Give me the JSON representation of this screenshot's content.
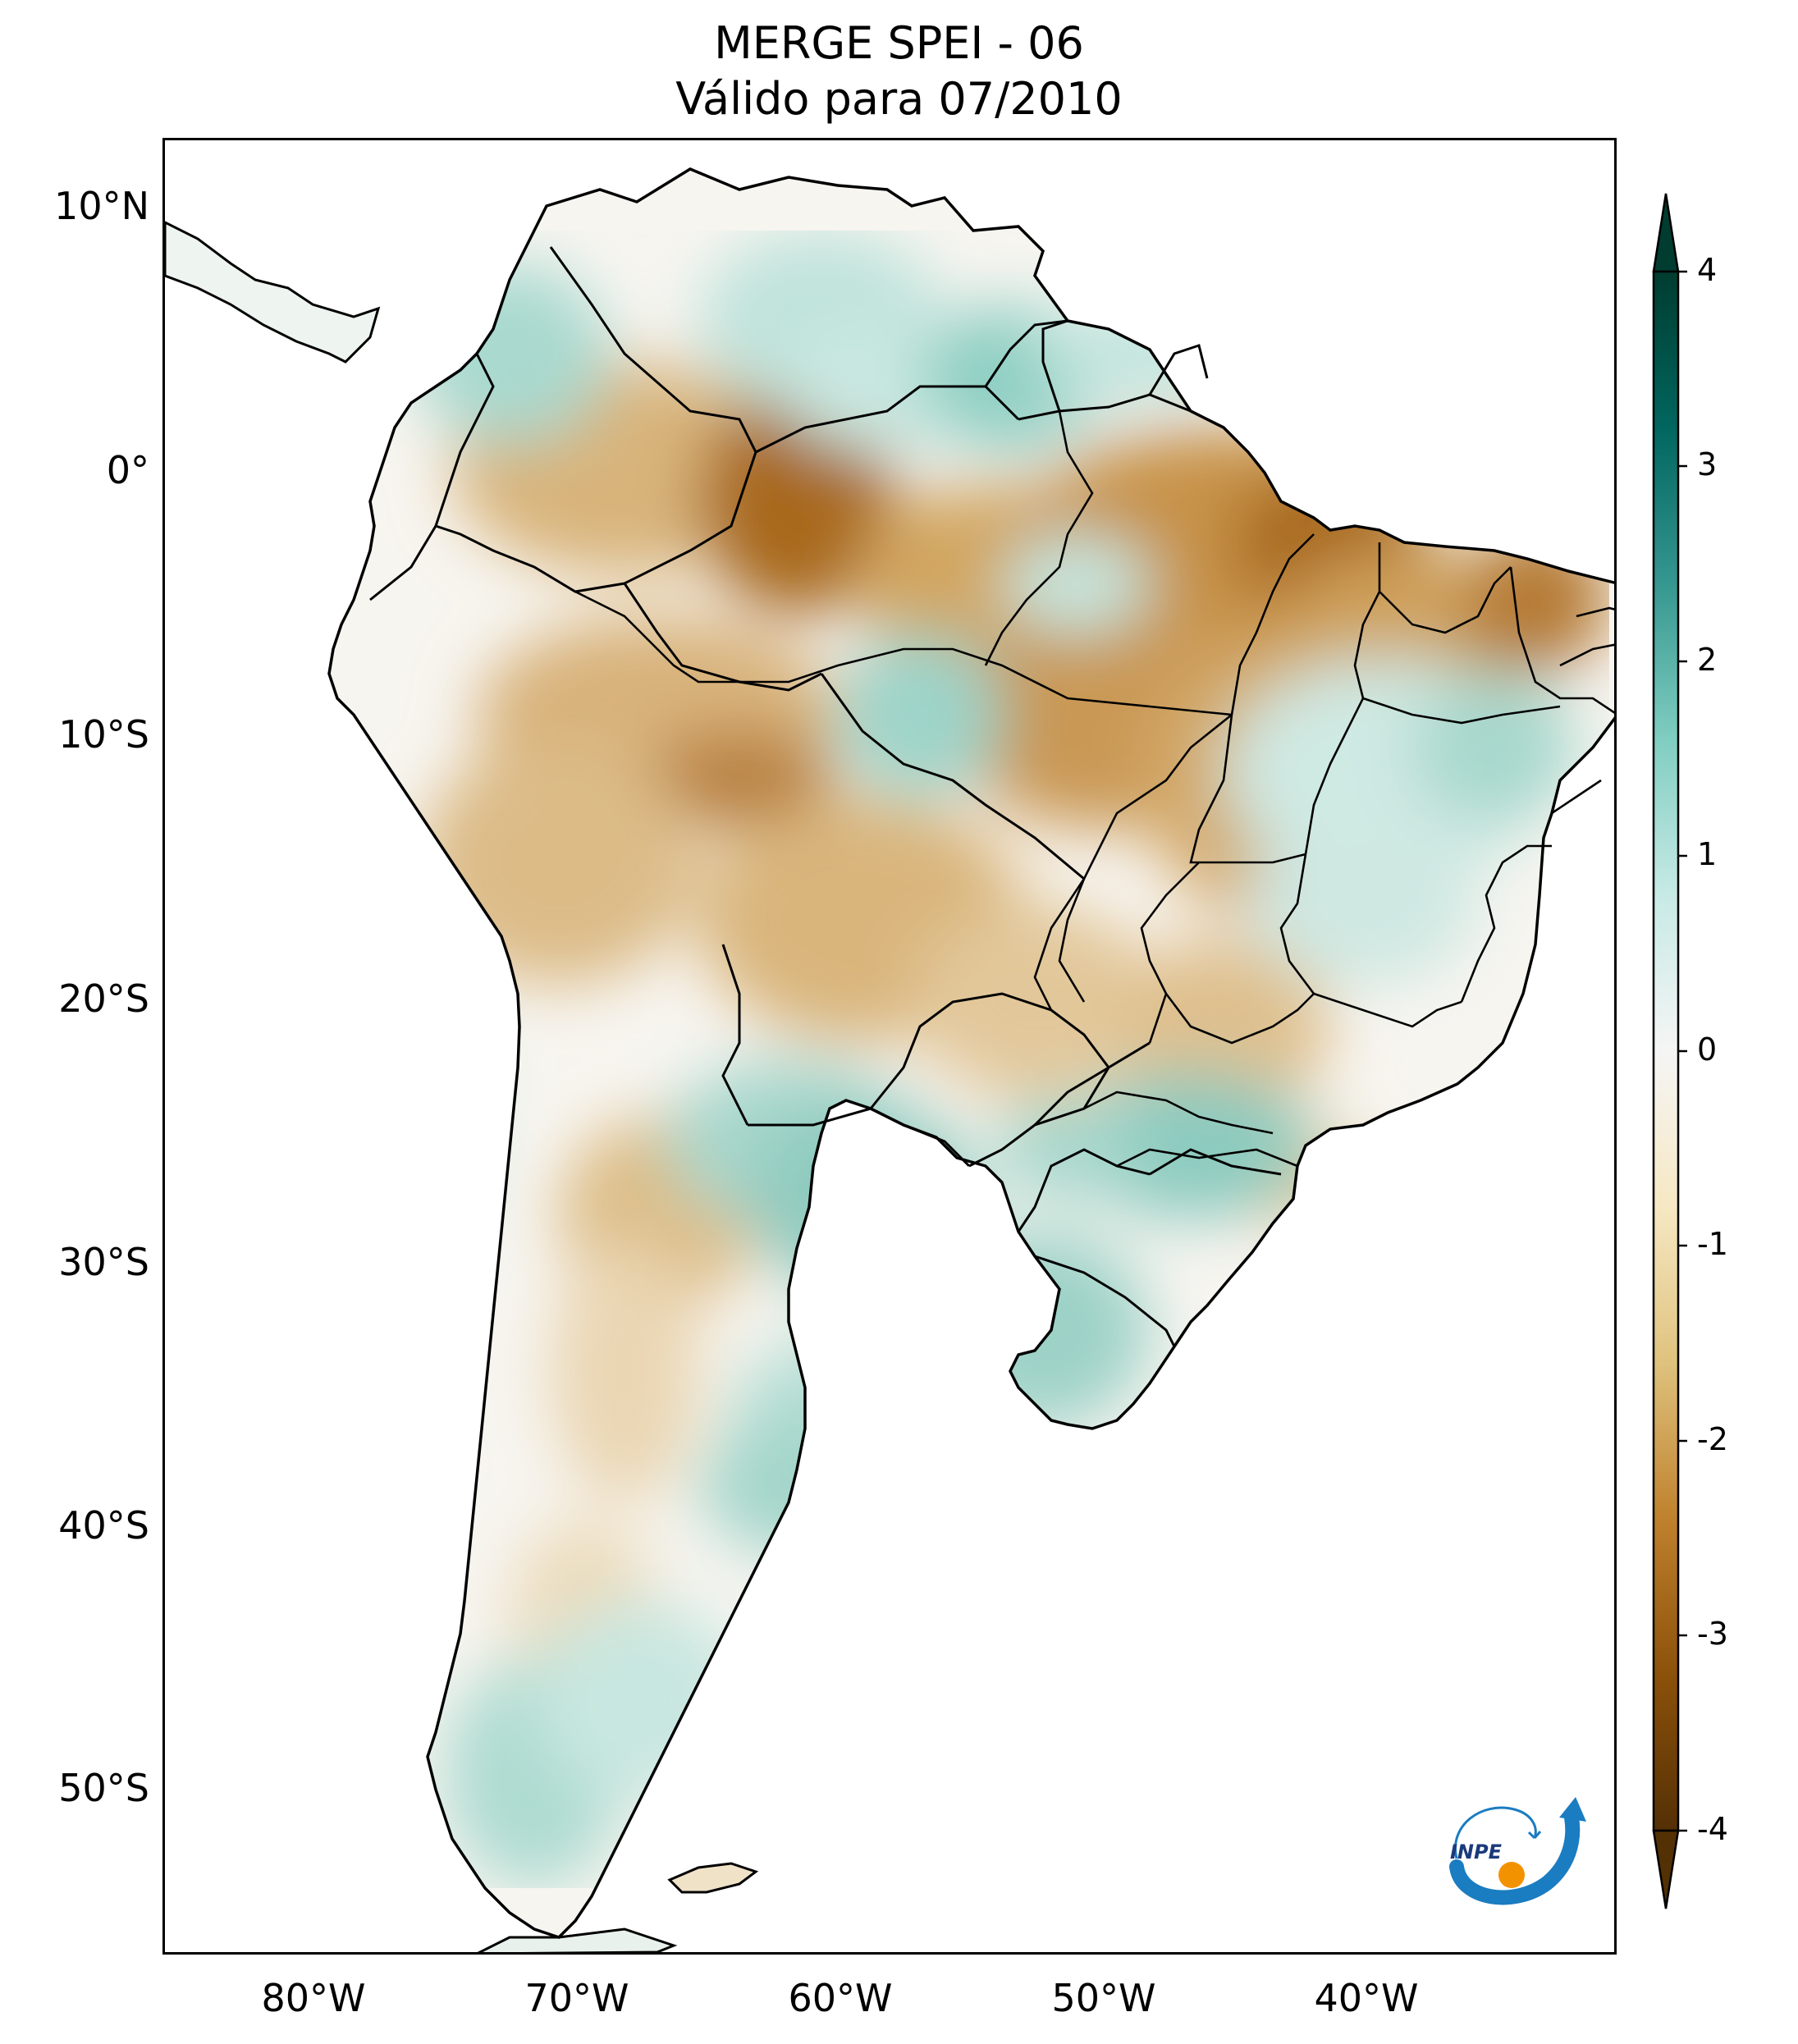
{
  "title": {
    "line1": "MERGE   SPEI - 06",
    "line2": "Válido para 07/2010"
  },
  "map": {
    "lat_labels": [
      "10°N",
      "0°",
      "10°S",
      "20°S",
      "30°S",
      "40°S",
      "50°S"
    ],
    "lon_labels": [
      "80°W",
      "70°W",
      "60°W",
      "50°W",
      "40°W"
    ],
    "lon_range": [
      -85,
      -30
    ],
    "lat_range": [
      -56,
      13
    ]
  },
  "colorbar": {
    "ticks": [
      "4",
      "3",
      "2",
      "1",
      "0",
      "-1",
      "-2",
      "-3",
      "-4"
    ],
    "range": [
      -4,
      4
    ],
    "extend": "both",
    "colors": {
      "dry_extreme": "#543005",
      "dry_strong": "#8c510a",
      "dry_moderate": "#bf812d",
      "dry_mild": "#dfc27d",
      "dry_light": "#f6e8c3",
      "neutral": "#f5f5f5",
      "wet_light": "#c7eae5",
      "wet_mild": "#80cdc1",
      "wet_moderate": "#35978f",
      "wet_strong": "#01665e",
      "wet_extreme": "#003c30"
    }
  },
  "logo": {
    "text": "INPE",
    "colors": {
      "arrow": "#1a7cc1",
      "dot": "#f39200"
    }
  }
}
